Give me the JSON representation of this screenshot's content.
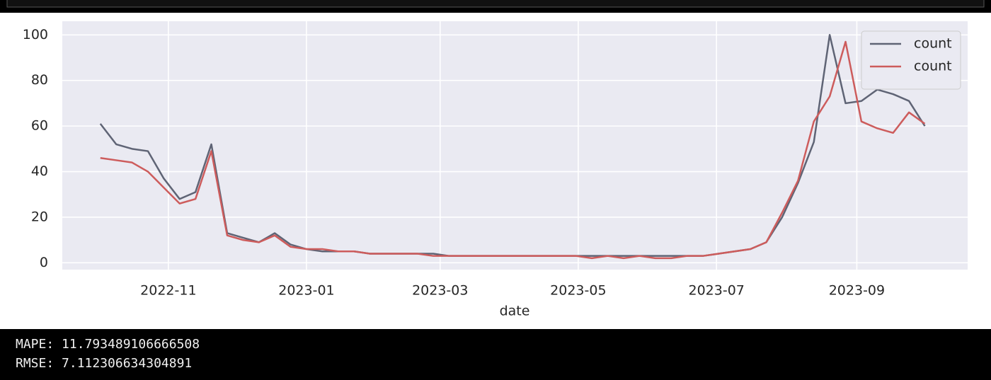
{
  "chart_data": {
    "type": "line",
    "xlabel": "date",
    "x": [
      0,
      1,
      2,
      3,
      4,
      5,
      6,
      7,
      8,
      9,
      10,
      11,
      12,
      13,
      14,
      15,
      16,
      17,
      18,
      19,
      20,
      21,
      22,
      23,
      24,
      25,
      26,
      27,
      28,
      29,
      30,
      31,
      32,
      33,
      34,
      35,
      36,
      37,
      38,
      39,
      40,
      41,
      42,
      43,
      44,
      45,
      46,
      47,
      48,
      49,
      50,
      51,
      52
    ],
    "series": [
      {
        "name": "count",
        "color": "#5f6475",
        "values": [
          61,
          52,
          50,
          49,
          37,
          28,
          31,
          52,
          13,
          11,
          9,
          13,
          8,
          6,
          5,
          5,
          5,
          4,
          4,
          4,
          4,
          4,
          3,
          3,
          3,
          3,
          3,
          3,
          3,
          3,
          3,
          3,
          3,
          3,
          3,
          3,
          3,
          3,
          3,
          4,
          5,
          6,
          9,
          20,
          35,
          53,
          100,
          70,
          71,
          76,
          74,
          71,
          60
        ]
      },
      {
        "name": "count",
        "color": "#cd5c5c",
        "values": [
          46,
          45,
          44,
          40,
          33,
          26,
          28,
          49,
          12,
          10,
          9,
          12,
          7,
          6,
          6,
          5,
          5,
          4,
          4,
          4,
          4,
          3,
          3,
          3,
          3,
          3,
          3,
          3,
          3,
          3,
          3,
          2,
          3,
          2,
          3,
          2,
          2,
          3,
          3,
          4,
          5,
          6,
          9,
          22,
          36,
          62,
          73,
          97,
          62,
          59,
          57,
          66,
          61
        ]
      }
    ],
    "xlim": [
      -2.4,
      54.7
    ],
    "xticks": [
      {
        "value": 4.29,
        "label": "2022-11"
      },
      {
        "value": 13.0,
        "label": "2023-01"
      },
      {
        "value": 21.43,
        "label": "2023-03"
      },
      {
        "value": 30.14,
        "label": "2023-05"
      },
      {
        "value": 38.86,
        "label": "2023-07"
      },
      {
        "value": 47.71,
        "label": "2023-09"
      }
    ],
    "ylim": [
      -3,
      106
    ],
    "yticks": [
      0,
      20,
      40,
      60,
      80,
      100
    ],
    "grid": true,
    "legend": "upper right"
  },
  "output": [
    "MAPE: 11.793489106666508",
    "RMSE: 7.112306634304891"
  ]
}
